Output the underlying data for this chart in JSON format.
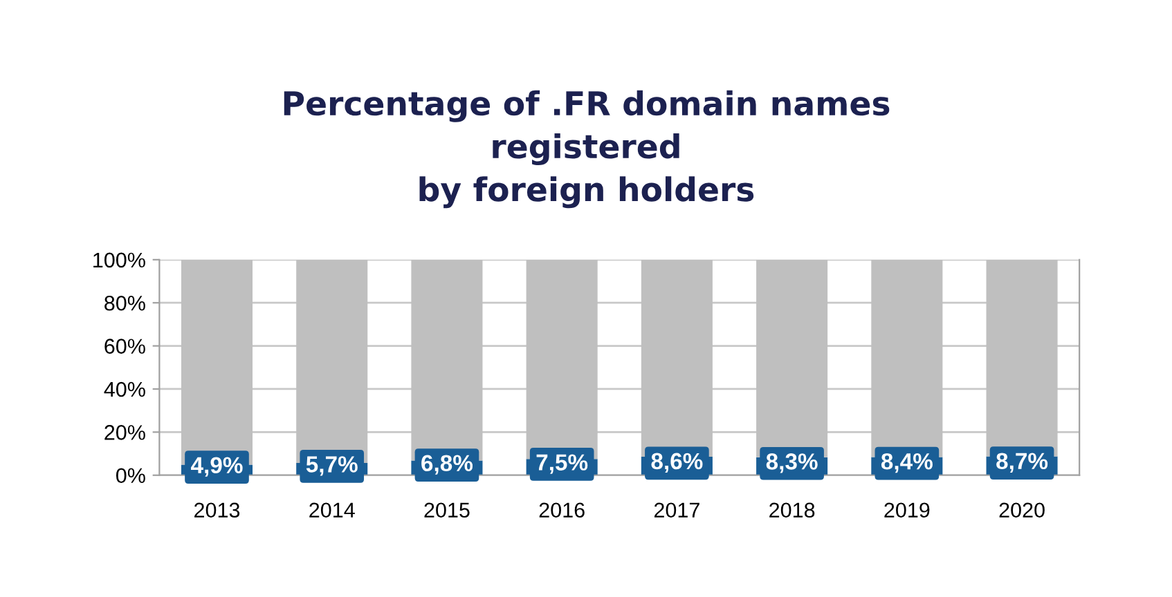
{
  "chart_data": {
    "type": "bar",
    "title": "Percentage of .FR domain names\nregistered\nby foreign holders",
    "categories": [
      "2013",
      "2014",
      "2015",
      "2016",
      "2017",
      "2018",
      "2019",
      "2020"
    ],
    "stacked": true,
    "series": [
      {
        "color": "#1a5e96",
        "values": [
          4.9,
          5.7,
          6.8,
          7.5,
          8.6,
          8.3,
          8.4,
          8.7
        ],
        "value_labels": [
          "4,9%",
          "5,7%",
          "6,8%",
          "7,5%",
          "8,6%",
          "8,3%",
          "8,4%",
          "8,7%"
        ]
      },
      {
        "color": "#bfbfbf",
        "values": [
          95.1,
          94.3,
          93.2,
          92.5,
          91.4,
          91.7,
          91.6,
          91.3
        ]
      }
    ],
    "ylim": [
      0,
      100
    ],
    "yticks": [
      {
        "value": 0,
        "label": "0%"
      },
      {
        "value": 20,
        "label": "20%"
      },
      {
        "value": 40,
        "label": "40%"
      },
      {
        "value": 60,
        "label": "60%"
      },
      {
        "value": 80,
        "label": "80%"
      },
      {
        "value": 100,
        "label": "100%"
      }
    ],
    "grid": "y"
  }
}
